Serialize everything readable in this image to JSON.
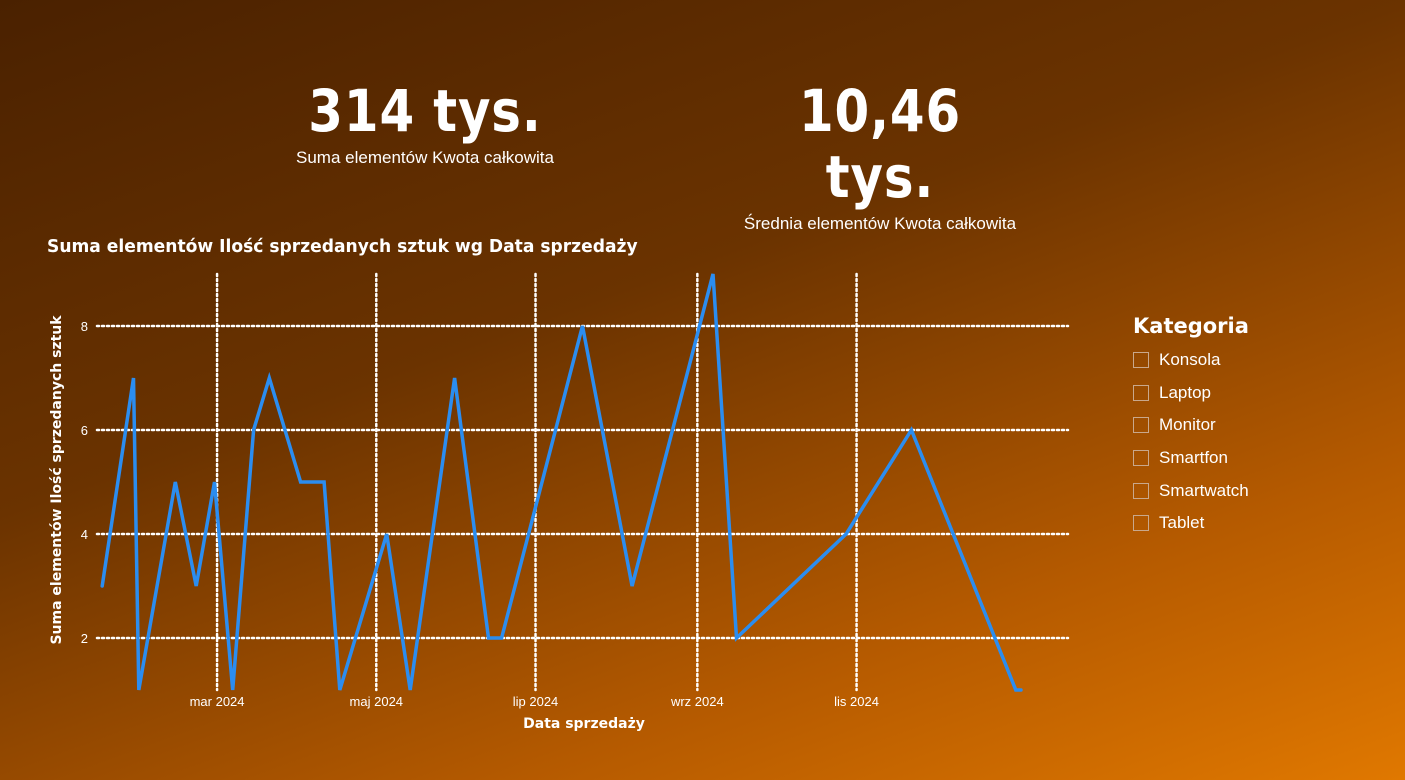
{
  "kpis": [
    {
      "value": "314 tys.",
      "label": "Suma elementów Kwota całkowita"
    },
    {
      "value": "10,46 tys.",
      "label": "Średnia elementów Kwota całkowita"
    }
  ],
  "legend": {
    "title": "Kategoria",
    "items": [
      "Konsola",
      "Laptop",
      "Monitor",
      "Smartfon",
      "Smartwatch",
      "Tablet"
    ]
  },
  "chart_data": {
    "type": "line",
    "title": "Suma elementów Ilość sprzedanych sztuk wg Data sprzedaży",
    "xlabel": "Data sprzedaży",
    "ylabel": "Suma elementów Ilość sprzedanych sztuk",
    "x_ticks": [
      {
        "date": "2024-03-01",
        "label": "mar 2024"
      },
      {
        "date": "2024-05-01",
        "label": "maj 2024"
      },
      {
        "date": "2024-07-01",
        "label": "lip 2024"
      },
      {
        "date": "2024-09-01",
        "label": "wrz 2024"
      },
      {
        "date": "2024-11-01",
        "label": "lis 2024"
      }
    ],
    "y_ticks": [
      2,
      4,
      6,
      8
    ],
    "xlim": [
      "2024-01-15",
      "2025-01-21"
    ],
    "ylim": [
      1,
      9
    ],
    "grid": true,
    "line_color": "#2b8df0",
    "series": [
      {
        "x": [
          "2024-01-17",
          "2024-01-29",
          "2024-01-31",
          "2024-02-14",
          "2024-02-22",
          "2024-02-29",
          "2024-03-07",
          "2024-03-15",
          "2024-03-21",
          "2024-04-02",
          "2024-04-11",
          "2024-04-17",
          "2024-05-05",
          "2024-05-14",
          "2024-05-31",
          "2024-06-13",
          "2024-06-18",
          "2024-07-19",
          "2024-08-07",
          "2024-09-07",
          "2024-09-16",
          "2024-10-28",
          "2024-11-22",
          "2025-01-01",
          "2025-01-03"
        ],
        "y": [
          3,
          7,
          1,
          5,
          3,
          5,
          1,
          6,
          7,
          5,
          5,
          1,
          4,
          1,
          7,
          2,
          2,
          8,
          3,
          9,
          2,
          4,
          6,
          1,
          1
        ]
      }
    ]
  }
}
